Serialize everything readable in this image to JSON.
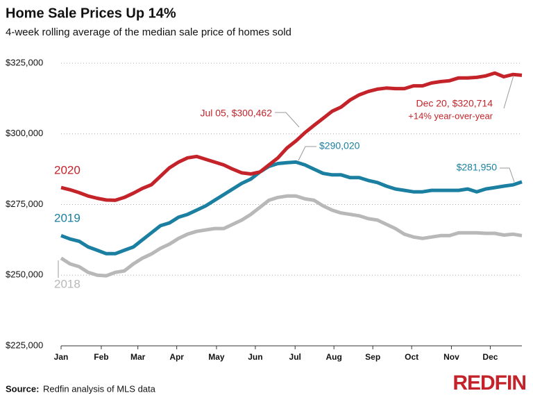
{
  "chart_data": {
    "type": "line",
    "title": "Home Sale Prices Up 14%",
    "subtitle": "4-week rolling average of the median sale price of homes sold",
    "source_label": "Source:",
    "source": "Redfin analysis of MLS data",
    "brand": "REDFIN",
    "x": [
      0,
      1,
      2,
      3,
      4,
      5,
      6,
      7,
      8,
      9,
      10,
      11,
      12,
      13,
      14,
      15,
      16,
      17,
      18,
      19,
      20,
      21,
      22,
      23,
      24,
      25,
      26,
      27,
      28,
      29,
      30,
      31,
      32,
      33,
      34,
      35,
      36,
      37,
      38,
      39,
      40,
      41,
      42,
      43,
      44,
      45,
      46,
      47,
      48,
      49,
      50,
      51
    ],
    "xlim": [
      0,
      51
    ],
    "xticks": [
      {
        "value": 0,
        "label": "Jan"
      },
      {
        "value": 4.45,
        "label": "Feb"
      },
      {
        "value": 8.5,
        "label": "Mar"
      },
      {
        "value": 12.8,
        "label": "Apr"
      },
      {
        "value": 17.2,
        "label": "May"
      },
      {
        "value": 21.5,
        "label": "Jun"
      },
      {
        "value": 25.9,
        "label": "Jul"
      },
      {
        "value": 30.2,
        "label": "Aug"
      },
      {
        "value": 34.5,
        "label": "Sep"
      },
      {
        "value": 38.8,
        "label": "Oct"
      },
      {
        "value": 43.2,
        "label": "Nov"
      },
      {
        "value": 47.5,
        "label": "Dec"
      }
    ],
    "ylim": [
      225000,
      325000
    ],
    "yticks": [
      {
        "value": 225000,
        "label": "$225,000"
      },
      {
        "value": 250000,
        "label": "$250,000"
      },
      {
        "value": 275000,
        "label": "$275,000"
      },
      {
        "value": 300000,
        "label": "$300,000"
      },
      {
        "value": 325000,
        "label": "$325,000"
      }
    ],
    "grid": true,
    "series": [
      {
        "name": "2020",
        "color": "#c4232a",
        "values": [
          281000,
          280200,
          279200,
          278000,
          277200,
          276600,
          276500,
          277500,
          279000,
          280700,
          282000,
          285000,
          288000,
          290000,
          291500,
          292000,
          291000,
          290000,
          289000,
          287500,
          286200,
          285800,
          286500,
          289000,
          291500,
          295000,
          297500,
          300462,
          303000,
          305500,
          308000,
          309500,
          312000,
          313800,
          315000,
          315800,
          316200,
          316000,
          316000,
          317000,
          317000,
          318000,
          318500,
          318800,
          319800,
          319800,
          320000,
          320500,
          321500,
          320200,
          321000,
          320714
        ]
      },
      {
        "name": "2019",
        "color": "#1a7fa0",
        "values": [
          264000,
          262800,
          262000,
          260000,
          258800,
          257600,
          257600,
          258800,
          260000,
          262500,
          265000,
          267500,
          268500,
          270500,
          271500,
          273000,
          274500,
          276500,
          278500,
          280500,
          282500,
          284000,
          286500,
          288500,
          289500,
          289800,
          290020,
          289000,
          287500,
          286000,
          285500,
          285500,
          284500,
          284500,
          283500,
          282800,
          281500,
          280500,
          280000,
          279500,
          279500,
          280000,
          280000,
          280000,
          280000,
          280500,
          279500,
          280500,
          281000,
          281500,
          281950,
          283000
        ]
      },
      {
        "name": "2018",
        "color": "#b8b8b8",
        "values": [
          256000,
          254000,
          253000,
          251000,
          250000,
          249800,
          251000,
          251500,
          254000,
          256000,
          257500,
          259500,
          261000,
          263000,
          264500,
          265500,
          266000,
          266500,
          266500,
          268000,
          269500,
          271500,
          274000,
          276500,
          277500,
          278000,
          278000,
          277000,
          276500,
          274500,
          273000,
          272000,
          271500,
          271000,
          270000,
          269500,
          268000,
          266500,
          264500,
          263500,
          263000,
          263500,
          264000,
          264000,
          265000,
          265000,
          265000,
          264800,
          264800,
          264200,
          264500,
          264000
        ]
      }
    ],
    "annotations": [
      "Jul 05, $300,462",
      "Dec 20, $320,714",
      "+14% year-over-year",
      "$290,020",
      "$281,950"
    ]
  }
}
